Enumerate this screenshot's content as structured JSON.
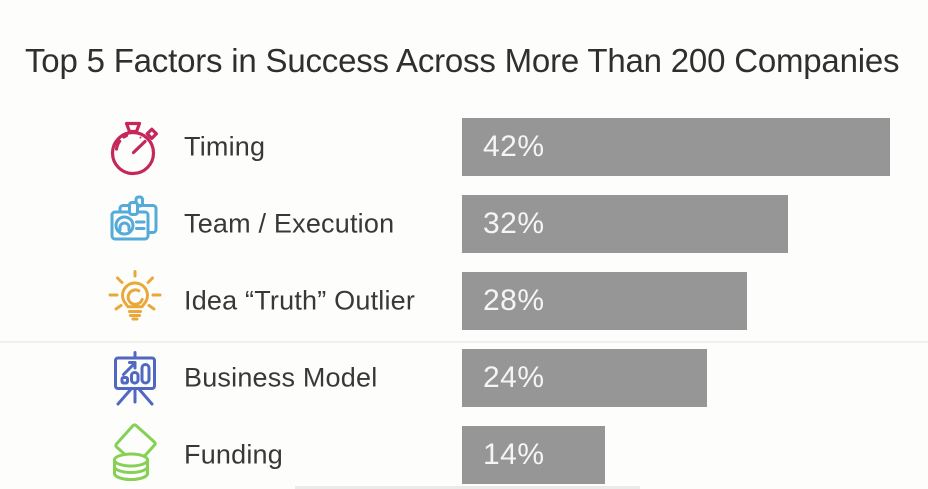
{
  "title": "Top 5 Factors in Success Across More Than 200 Companies",
  "chart_data": {
    "type": "bar",
    "orientation": "horizontal",
    "title": "Top 5 Factors in Success Across More Than 200 Companies",
    "categories": [
      "Timing",
      "Team / Execution",
      "Idea “Truth” Outlier",
      "Business Model",
      "Funding"
    ],
    "values": [
      42,
      32,
      28,
      24,
      14
    ],
    "value_labels": [
      "42%",
      "32%",
      "28%",
      "24%",
      "14%"
    ],
    "unit": "percent",
    "xlim": [
      0,
      42
    ],
    "grid": false,
    "legend": false,
    "bar_color": "#969696",
    "value_label_color": "#f5f5f5",
    "icons": [
      {
        "name": "stopwatch-icon",
        "color": "#c5265c"
      },
      {
        "name": "id-badge-icon",
        "color": "#54abd9"
      },
      {
        "name": "lightbulb-icon",
        "color": "#e9a93a"
      },
      {
        "name": "presentation-chart-icon",
        "color": "#5168c2"
      },
      {
        "name": "coins-icon",
        "color": "#85d055"
      }
    ]
  }
}
